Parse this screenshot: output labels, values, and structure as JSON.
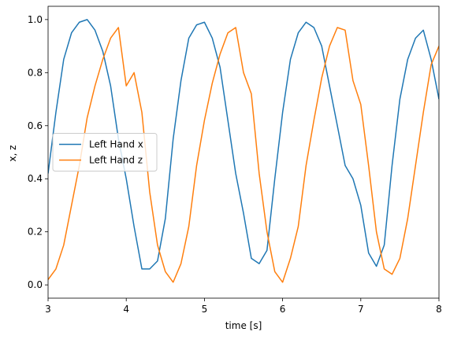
{
  "chart_data": {
    "type": "line",
    "xlabel": "time [s]",
    "ylabel": "x, z",
    "x": [
      3.0,
      3.1,
      3.2,
      3.3,
      3.4,
      3.5,
      3.6,
      3.7,
      3.8,
      3.9,
      4.0,
      4.1,
      4.2,
      4.3,
      4.4,
      4.5,
      4.6,
      4.7,
      4.8,
      4.9,
      5.0,
      5.1,
      5.2,
      5.3,
      5.4,
      5.5,
      5.6,
      5.7,
      5.8,
      5.9,
      6.0,
      6.1,
      6.2,
      6.3,
      6.4,
      6.5,
      6.6,
      6.7,
      6.8,
      6.9,
      7.0,
      7.1,
      7.2,
      7.3,
      7.4,
      7.5,
      7.6,
      7.7,
      7.8,
      7.9,
      8.0
    ],
    "series": [
      {
        "name": "Left Hand x",
        "color": "#1f77b4",
        "values": [
          0.42,
          0.65,
          0.85,
          0.95,
          0.99,
          1.0,
          0.96,
          0.88,
          0.75,
          0.55,
          0.4,
          0.22,
          0.06,
          0.06,
          0.09,
          0.25,
          0.55,
          0.77,
          0.93,
          0.98,
          0.99,
          0.93,
          0.82,
          0.62,
          0.42,
          0.27,
          0.1,
          0.08,
          0.13,
          0.4,
          0.65,
          0.85,
          0.95,
          0.99,
          0.97,
          0.9,
          0.75,
          0.6,
          0.45,
          0.4,
          0.3,
          0.12,
          0.07,
          0.15,
          0.45,
          0.7,
          0.85,
          0.93,
          0.96,
          0.85,
          0.7
        ]
      },
      {
        "name": "Left Hand z",
        "color": "#ff7f0e",
        "values": [
          0.02,
          0.06,
          0.15,
          0.3,
          0.45,
          0.63,
          0.75,
          0.85,
          0.93,
          0.97,
          0.75,
          0.8,
          0.65,
          0.35,
          0.15,
          0.05,
          0.01,
          0.08,
          0.22,
          0.45,
          0.62,
          0.76,
          0.87,
          0.95,
          0.97,
          0.8,
          0.72,
          0.42,
          0.2,
          0.05,
          0.01,
          0.1,
          0.22,
          0.45,
          0.62,
          0.78,
          0.9,
          0.97,
          0.96,
          0.77,
          0.68,
          0.45,
          0.2,
          0.06,
          0.04,
          0.1,
          0.25,
          0.45,
          0.65,
          0.83,
          0.9
        ]
      }
    ],
    "xlim": [
      3,
      8
    ],
    "xticks": [
      3,
      4,
      5,
      6,
      7,
      8
    ],
    "ylim": [
      -0.05,
      1.05
    ],
    "yticks": [
      {
        "value": 0,
        "label": "0.0"
      },
      0.2,
      0.4,
      0.6,
      0.8,
      {
        "value": 1,
        "label": "1.0"
      }
    ],
    "grid": false,
    "legend": "center left"
  }
}
